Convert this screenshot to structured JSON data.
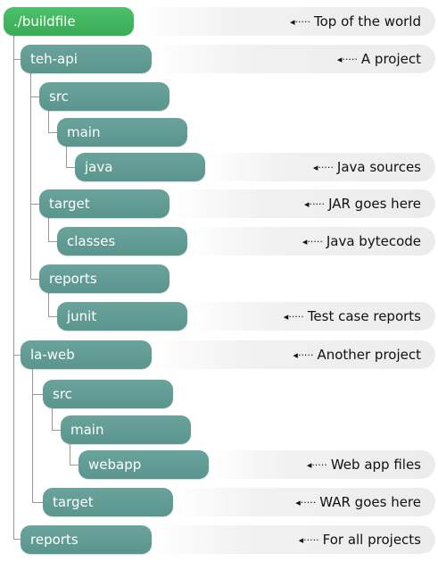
{
  "arrow_glyph": "◂·····",
  "rows": [
    {
      "id": "buildfile",
      "label": "./buildfile",
      "note": "Top of the world",
      "root": true
    },
    {
      "id": "teh-api",
      "label": "teh-api",
      "note": "A project"
    },
    {
      "id": "src-1",
      "label": "src",
      "note": ""
    },
    {
      "id": "main-1",
      "label": "main",
      "note": ""
    },
    {
      "id": "java",
      "label": "java",
      "note": "Java sources"
    },
    {
      "id": "target-1",
      "label": "target",
      "note": "JAR goes here"
    },
    {
      "id": "classes",
      "label": "classes",
      "note": "Java bytecode"
    },
    {
      "id": "reports-1",
      "label": "reports",
      "note": ""
    },
    {
      "id": "junit",
      "label": "junit",
      "note": "Test case reports"
    },
    {
      "id": "la-web",
      "label": "la-web",
      "note": "Another project"
    },
    {
      "id": "src-2",
      "label": "src",
      "note": ""
    },
    {
      "id": "main-2",
      "label": "main",
      "note": ""
    },
    {
      "id": "webapp",
      "label": "webapp",
      "note": "Web app files"
    },
    {
      "id": "target-2",
      "label": "target",
      "note": "WAR goes here"
    },
    {
      "id": "reports-2",
      "label": "reports",
      "note": "For all projects"
    }
  ]
}
